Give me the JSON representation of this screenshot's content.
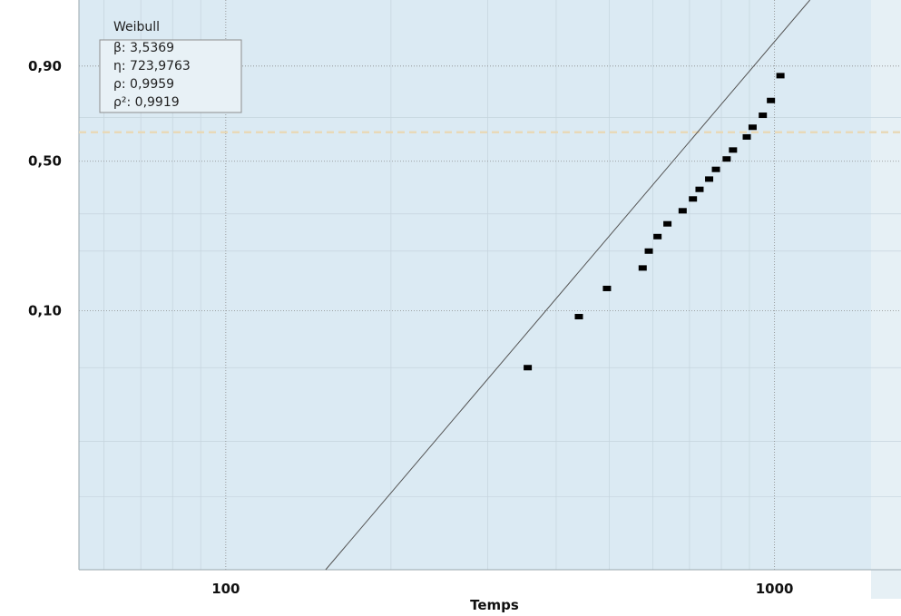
{
  "chart_data": {
    "type": "scatter",
    "title": "",
    "xlabel": "Temps",
    "ylabel": "",
    "x_scale": "log",
    "y_scale": "weibull",
    "xlim": [
      54,
      1700
    ],
    "ylim": [
      0.004,
      0.995
    ],
    "x_ticks": [
      {
        "value": 100,
        "label": "100"
      },
      {
        "value": 1000,
        "label": "1000"
      }
    ],
    "y_ticks": [
      {
        "value": 0.9,
        "label": "0,90"
      },
      {
        "value": 0.5,
        "label": "0,50"
      },
      {
        "value": 0.1,
        "label": "0,10"
      }
    ],
    "grid": true,
    "legend_position": "top-left",
    "legend": {
      "title": "Weibull",
      "lines": [
        "β: 3,5369",
        "η: 723,9763",
        "ρ: 0,9959",
        "ρ²: 0,9919"
      ]
    },
    "fit_line": {
      "beta": 3.5369,
      "eta": 723.9763
    },
    "reference_line": {
      "y": 0.632
    },
    "points": [
      {
        "x": 355,
        "y": 0.05
      },
      {
        "x": 440,
        "y": 0.093
      },
      {
        "x": 495,
        "y": 0.13
      },
      {
        "x": 575,
        "y": 0.165
      },
      {
        "x": 590,
        "y": 0.2
      },
      {
        "x": 612,
        "y": 0.235
      },
      {
        "x": 638,
        "y": 0.27
      },
      {
        "x": 680,
        "y": 0.31
      },
      {
        "x": 710,
        "y": 0.35
      },
      {
        "x": 730,
        "y": 0.385
      },
      {
        "x": 760,
        "y": 0.425
      },
      {
        "x": 782,
        "y": 0.465
      },
      {
        "x": 818,
        "y": 0.51
      },
      {
        "x": 840,
        "y": 0.55
      },
      {
        "x": 890,
        "y": 0.61
      },
      {
        "x": 912,
        "y": 0.655
      },
      {
        "x": 952,
        "y": 0.71
      },
      {
        "x": 985,
        "y": 0.775
      },
      {
        "x": 1025,
        "y": 0.87
      }
    ],
    "colors": {
      "plot_background": "#dbeaf3",
      "frame_background": "#e6f0f5",
      "grid": "#8a8a8a",
      "fit_line": "#555555",
      "reference_line": "#e8d9b8",
      "points": "#000000"
    }
  }
}
